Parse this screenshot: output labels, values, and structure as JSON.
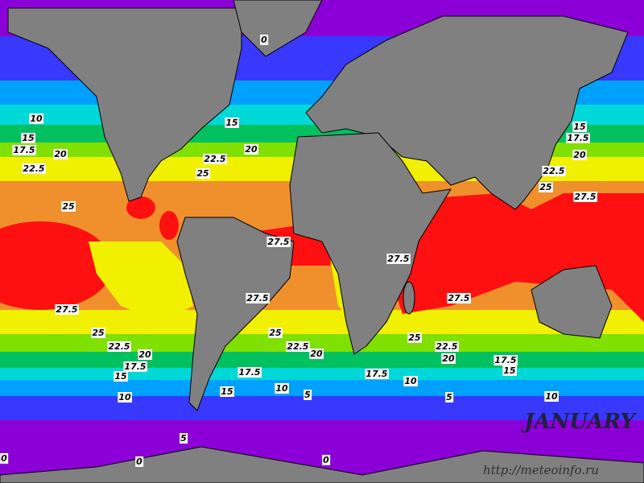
{
  "map": {
    "month": "JANUARY",
    "source": "http://meteoinfo.ru",
    "contour_labels": [
      "0",
      "10",
      "15",
      "17.5",
      "20",
      "22.5",
      "25",
      "27.5",
      "25",
      "22.5",
      "20",
      "17.5",
      "15",
      "10",
      "5",
      "0",
      "0",
      "15",
      "20",
      "22.5",
      "25",
      "27.5",
      "27.5",
      "25",
      "22.5",
      "20",
      "17.5",
      "15",
      "10",
      "5",
      "0",
      "27.5",
      "27.5",
      "25",
      "22.5",
      "20",
      "17.5",
      "10",
      "5",
      "17.5",
      "15",
      "10",
      "15",
      "17.5",
      "20",
      "22.5",
      "25",
      "27.5"
    ]
  }
}
